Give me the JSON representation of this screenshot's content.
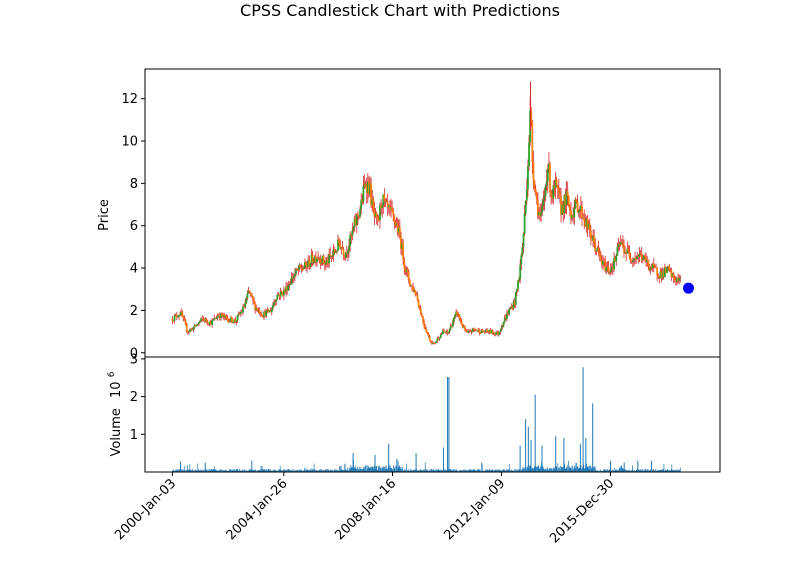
{
  "chart_data": {
    "type": "candlestick",
    "title": "CPSS Candlestick Chart with Predictions",
    "price_panel": {
      "ylabel": "Price",
      "ylim": [
        -0.2,
        13.4
      ],
      "yticks": [
        0,
        2,
        4,
        6,
        8,
        10,
        12
      ],
      "colors": {
        "up": "#2ca02c",
        "down": "#ff7f0e",
        "wick": "#d62728",
        "prediction": "#0000ff"
      },
      "price_path": [
        [
          2000.0,
          1.6
        ],
        [
          2000.3,
          1.9
        ],
        [
          2000.55,
          1.0
        ],
        [
          2000.8,
          1.2
        ],
        [
          2001.1,
          1.6
        ],
        [
          2001.4,
          1.4
        ],
        [
          2001.7,
          1.8
        ],
        [
          2002.0,
          1.6
        ],
        [
          2002.3,
          1.5
        ],
        [
          2002.6,
          2.1
        ],
        [
          2002.8,
          2.9
        ],
        [
          2003.0,
          2.2
        ],
        [
          2003.3,
          1.8
        ],
        [
          2003.6,
          2.0
        ],
        [
          2003.8,
          2.7
        ],
        [
          2004.1,
          2.9
        ],
        [
          2004.4,
          3.6
        ],
        [
          2004.6,
          3.9
        ],
        [
          2004.9,
          4.1
        ],
        [
          2005.1,
          4.4
        ],
        [
          2005.3,
          4.6
        ],
        [
          2005.6,
          4.2
        ],
        [
          2005.9,
          4.7
        ],
        [
          2006.1,
          5.2
        ],
        [
          2006.3,
          4.7
        ],
        [
          2006.5,
          5.3
        ],
        [
          2006.7,
          6.2
        ],
        [
          2006.9,
          7.0
        ],
        [
          2007.05,
          8.1
        ],
        [
          2007.2,
          7.8
        ],
        [
          2007.35,
          6.5
        ],
        [
          2007.5,
          6.0
        ],
        [
          2007.65,
          7.3
        ],
        [
          2007.8,
          6.8
        ],
        [
          2008.0,
          6.5
        ],
        [
          2008.2,
          6.0
        ],
        [
          2008.35,
          5.2
        ],
        [
          2008.5,
          4.0
        ],
        [
          2008.7,
          3.2
        ],
        [
          2008.9,
          2.8
        ],
        [
          2009.05,
          2.0
        ],
        [
          2009.2,
          1.3
        ],
        [
          2009.4,
          0.6
        ],
        [
          2009.55,
          0.4
        ],
        [
          2009.7,
          0.7
        ],
        [
          2009.9,
          1.0
        ],
        [
          2010.05,
          0.9
        ],
        [
          2010.25,
          1.5
        ],
        [
          2010.4,
          1.9
        ],
        [
          2010.55,
          1.4
        ],
        [
          2010.75,
          0.9
        ],
        [
          2011.0,
          1.1
        ],
        [
          2011.3,
          1.0
        ],
        [
          2011.6,
          1.0
        ],
        [
          2011.9,
          0.9
        ],
        [
          2012.1,
          1.5
        ],
        [
          2012.3,
          2.0
        ],
        [
          2012.5,
          2.4
        ],
        [
          2012.65,
          3.5
        ],
        [
          2012.8,
          5.2
        ],
        [
          2012.92,
          7.5
        ],
        [
          2013.0,
          9.5
        ],
        [
          2013.08,
          11.5
        ],
        [
          2013.15,
          9.0
        ],
        [
          2013.3,
          7.2
        ],
        [
          2013.45,
          6.2
        ],
        [
          2013.6,
          7.5
        ],
        [
          2013.7,
          9.0
        ],
        [
          2013.85,
          7.4
        ],
        [
          2014.0,
          7.8
        ],
        [
          2014.2,
          6.8
        ],
        [
          2014.4,
          7.3
        ],
        [
          2014.55,
          6.6
        ],
        [
          2014.8,
          7.0
        ],
        [
          2015.0,
          6.5
        ],
        [
          2015.2,
          5.8
        ],
        [
          2015.45,
          5.0
        ],
        [
          2015.7,
          4.2
        ],
        [
          2015.95,
          3.9
        ],
        [
          2016.15,
          4.3
        ],
        [
          2016.35,
          5.2
        ],
        [
          2016.55,
          4.8
        ],
        [
          2016.8,
          4.5
        ],
        [
          2017.1,
          4.6
        ],
        [
          2017.35,
          4.2
        ],
        [
          2017.6,
          3.9
        ],
        [
          2017.85,
          3.7
        ],
        [
          2018.1,
          3.9
        ],
        [
          2018.3,
          3.5
        ],
        [
          2018.55,
          3.4
        ]
      ],
      "prediction": {
        "x": 2018.85,
        "y": 3.05
      }
    },
    "volume_panel": {
      "ylabel": "Volume",
      "ylabel_exponent_base": "10",
      "ylabel_exponent": "6",
      "ylim": [
        0,
        3.05
      ],
      "yticks": [
        1,
        2,
        3
      ],
      "color": "#1f77b4",
      "spikes": [
        [
          2000.3,
          0.28
        ],
        [
          2001.2,
          0.25
        ],
        [
          2002.9,
          0.3
        ],
        [
          2006.3,
          0.22
        ],
        [
          2006.6,
          0.5
        ],
        [
          2007.4,
          0.45
        ],
        [
          2007.9,
          0.75
        ],
        [
          2008.2,
          0.35
        ],
        [
          2008.9,
          0.5
        ],
        [
          2009.9,
          0.65
        ],
        [
          2010.05,
          2.52
        ],
        [
          2010.1,
          2.52
        ],
        [
          2012.7,
          0.7
        ],
        [
          2012.9,
          1.4
        ],
        [
          2013.0,
          1.2
        ],
        [
          2013.1,
          0.85
        ],
        [
          2013.25,
          2.05
        ],
        [
          2013.5,
          0.7
        ],
        [
          2014.0,
          0.95
        ],
        [
          2014.3,
          0.9
        ],
        [
          2014.9,
          0.75
        ],
        [
          2015.0,
          2.78
        ],
        [
          2015.1,
          0.9
        ],
        [
          2015.35,
          1.82
        ],
        [
          2016.0,
          0.3
        ],
        [
          2016.5,
          0.25
        ],
        [
          2017.0,
          0.3
        ],
        [
          2017.5,
          0.3
        ]
      ]
    },
    "xaxis": {
      "range": [
        1999.0,
        2020.0
      ],
      "ticks": [
        {
          "label": "2000-Jan-03",
          "x": 2000.0
        },
        {
          "label": "2004-Jan-26",
          "x": 2004.07
        },
        {
          "label": "2008-Jan-16",
          "x": 2008.04
        },
        {
          "label": "2012-Jan-09",
          "x": 2012.02
        },
        {
          "label": "2015-Dec-30",
          "x": 2016.0
        }
      ]
    }
  }
}
